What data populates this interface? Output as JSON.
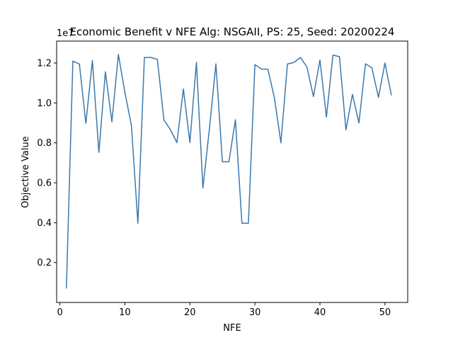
{
  "chart_data": {
    "type": "line",
    "title": "Economic Benefit v NFE Alg: NSGAII, PS: 25, Seed: 20200224",
    "xlabel": "NFE",
    "ylabel": "Objective Value",
    "y_multiplier": "1e7",
    "xlim": [
      -0.5,
      53.5
    ],
    "ylim": [
      0.0,
      1.31
    ],
    "xticks": [
      0,
      10,
      20,
      30,
      40,
      50
    ],
    "yticks": [
      0.2,
      0.4,
      0.6,
      0.8,
      1.0,
      1.2
    ],
    "xtick_labels": [
      "0",
      "10",
      "20",
      "30",
      "40",
      "50"
    ],
    "ytick_labels": [
      "0.2",
      "0.4",
      "0.6",
      "0.8",
      "1.0",
      "1.2"
    ],
    "grid": false,
    "series": [
      {
        "color": "#3b78ac",
        "x": [
          1,
          2,
          3,
          4,
          5,
          6,
          7,
          8,
          9,
          10,
          11,
          12,
          13,
          14,
          15,
          16,
          17,
          18,
          19,
          20,
          21,
          22,
          23,
          24,
          25,
          26,
          27,
          28,
          29,
          30,
          31,
          32,
          33,
          34,
          35,
          36,
          37,
          38,
          39,
          40,
          41,
          42,
          43,
          44,
          45,
          46,
          47,
          48,
          49,
          50,
          51
        ],
        "y": [
          0.07,
          1.21,
          1.195,
          0.898,
          1.213,
          0.752,
          1.156,
          0.905,
          1.243,
          1.053,
          0.888,
          0.397,
          1.228,
          1.228,
          1.218,
          0.915,
          0.866,
          0.801,
          1.07,
          0.801,
          1.203,
          0.573,
          0.87,
          1.196,
          0.705,
          0.705,
          0.916,
          0.397,
          0.397,
          1.192,
          1.17,
          1.169,
          1.025,
          0.8,
          1.195,
          1.203,
          1.228,
          1.18,
          1.032,
          1.215,
          0.929,
          1.24,
          1.232,
          0.865,
          1.043,
          0.9,
          1.196,
          1.176,
          1.028,
          1.2,
          1.038
        ]
      }
    ]
  }
}
